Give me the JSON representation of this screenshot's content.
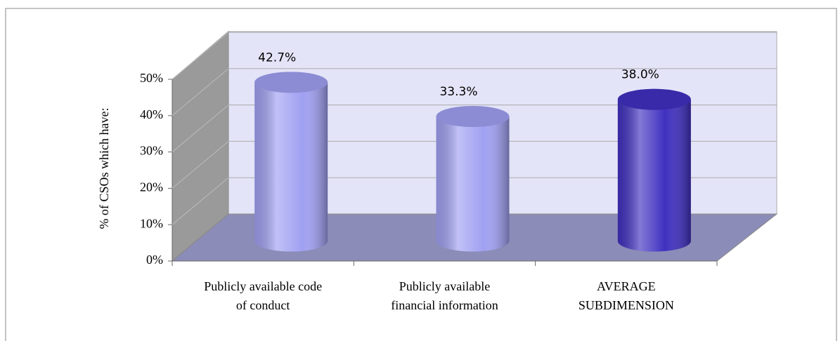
{
  "chart_data": {
    "type": "bar3d",
    "y_label": "% of CSOs which have:",
    "categories": [
      [
        "Publicly available code",
        "of conduct"
      ],
      [
        "Publicly available",
        "financial information"
      ],
      [
        "AVERAGE",
        "SUBDIMENSION"
      ]
    ],
    "values": [
      42.7,
      33.3,
      38.0
    ],
    "value_labels": [
      "42.7%",
      "33.3%",
      "38.0%"
    ],
    "colors": [
      "#a0a0f2",
      "#a0a0f2",
      "#4030c0"
    ],
    "ylim": [
      0,
      50
    ],
    "yticks": [
      {
        "value": 0,
        "label": "0%"
      },
      {
        "value": 10,
        "label": "10%"
      },
      {
        "value": 20,
        "label": "20%"
      },
      {
        "value": 30,
        "label": "30%"
      },
      {
        "value": 40,
        "label": "40%"
      },
      {
        "value": 50,
        "label": "50%"
      }
    ],
    "grid": true
  }
}
